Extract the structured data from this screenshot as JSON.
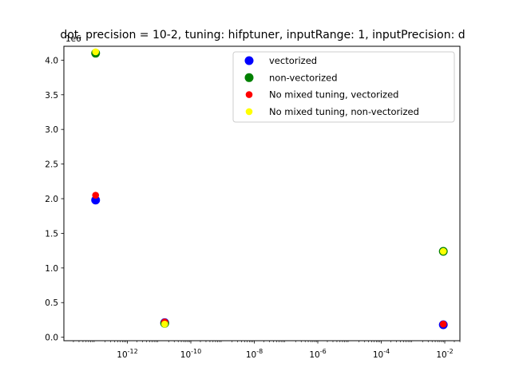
{
  "chart_data": {
    "type": "scatter",
    "title": "dot, precision = 10-2, tuning: hifptuner, inputRange: 1, inputPrecision: d",
    "xlabel": "",
    "ylabel": "",
    "xscale": "log",
    "xlim": [
      1e-14,
      0.03
    ],
    "ylim": [
      -0.05,
      4.2
    ],
    "y_offset_label": "1e6",
    "x_ticks": [
      {
        "value": 1e-12,
        "label": "10^-12"
      },
      {
        "value": 1e-10,
        "label": "10^-10"
      },
      {
        "value": 1e-08,
        "label": "10^-8"
      },
      {
        "value": 1e-06,
        "label": "10^-6"
      },
      {
        "value": 0.0001,
        "label": "10^-4"
      },
      {
        "value": 0.01,
        "label": "10^-2"
      }
    ],
    "y_ticks": [
      {
        "value": 0.0,
        "label": "0.0"
      },
      {
        "value": 0.5,
        "label": "0.5"
      },
      {
        "value": 1.0,
        "label": "1.0"
      },
      {
        "value": 1.5,
        "label": "1.5"
      },
      {
        "value": 2.0,
        "label": "2.0"
      },
      {
        "value": 2.5,
        "label": "2.5"
      },
      {
        "value": 3.0,
        "label": "3.0"
      },
      {
        "value": 3.5,
        "label": "3.5"
      },
      {
        "value": 4.0,
        "label": "4.0"
      }
    ],
    "legend_position": "top-right",
    "series": [
      {
        "name": "vectorized",
        "color": "#0000ff",
        "size": "large",
        "points": [
          {
            "x": 1e-13,
            "y": 1.98
          },
          {
            "x": 1.5e-11,
            "y": 0.21
          },
          {
            "x": 0.009,
            "y": 0.18
          }
        ]
      },
      {
        "name": "non-vectorized",
        "color": "#008000",
        "size": "large",
        "points": [
          {
            "x": 1e-13,
            "y": 4.1
          },
          {
            "x": 1.5e-11,
            "y": 0.2
          },
          {
            "x": 0.009,
            "y": 1.24
          }
        ]
      },
      {
        "name": "No mixed tuning, vectorized",
        "color": "#ff0000",
        "size": "small",
        "points": [
          {
            "x": 1e-13,
            "y": 2.05
          },
          {
            "x": 1.5e-11,
            "y": 0.22
          },
          {
            "x": 0.009,
            "y": 0.19
          }
        ]
      },
      {
        "name": "No mixed tuning, non-vectorized",
        "color": "#ffff00",
        "size": "small",
        "points": [
          {
            "x": 1e-13,
            "y": 4.12
          },
          {
            "x": 1.5e-11,
            "y": 0.19
          },
          {
            "x": 0.009,
            "y": 1.24
          }
        ]
      }
    ]
  }
}
